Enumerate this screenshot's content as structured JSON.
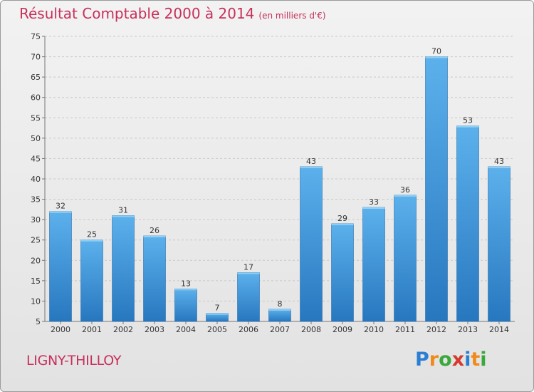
{
  "chart_data": {
    "type": "bar",
    "title": "Résultat Comptable 2000 à 2014",
    "subtitle": "(en milliers d'€)",
    "categories": [
      "2000",
      "2001",
      "2002",
      "2003",
      "2004",
      "2005",
      "2006",
      "2007",
      "2008",
      "2009",
      "2010",
      "2011",
      "2012",
      "2013",
      "2014"
    ],
    "values": [
      32,
      25,
      31,
      26,
      13,
      7,
      17,
      8,
      43,
      29,
      33,
      36,
      70,
      53,
      43
    ],
    "xlabel": "",
    "ylabel": "",
    "ylim": [
      5,
      75
    ],
    "yticks": [
      5,
      10,
      15,
      20,
      25,
      30,
      35,
      40,
      45,
      50,
      55,
      60,
      65,
      70,
      75
    ],
    "grid": true,
    "bar_color": "#3d8fd6"
  },
  "commune": "LIGNY-THILLOY",
  "logo": {
    "text": "Proxiti",
    "letter_colors": [
      "#2a7fd3",
      "#f08a1c",
      "#3aa83a",
      "#d63a2f",
      "#2a7fd3",
      "#f08a1c",
      "#3aa83a"
    ]
  }
}
